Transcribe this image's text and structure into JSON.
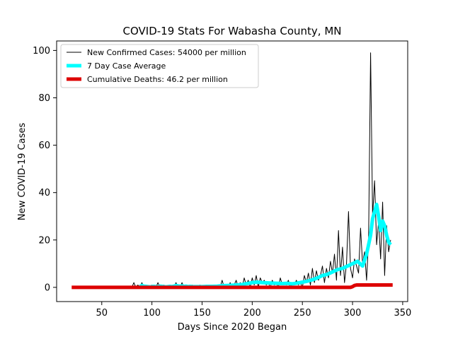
{
  "chart_data": {
    "type": "line",
    "title": "COVID-19 Stats For Wabasha County, MN",
    "xlabel": "Days Since 2020 Began",
    "ylabel": "New COVID-19 Cases",
    "xlim": [
      5,
      355
    ],
    "ylim": [
      -6,
      104
    ],
    "xticks": [
      50,
      100,
      150,
      200,
      250,
      300,
      350
    ],
    "yticks": [
      0,
      20,
      40,
      60,
      80,
      100
    ],
    "grid": false,
    "legend_position": "top-left",
    "series": [
      {
        "name": "New Confirmed Cases: 54000 per million",
        "color": "#000000",
        "style": "thin-line",
        "x": [
          80,
          82,
          84,
          86,
          88,
          90,
          92,
          94,
          96,
          98,
          100,
          102,
          104,
          106,
          108,
          110,
          112,
          114,
          116,
          118,
          120,
          122,
          124,
          126,
          128,
          130,
          132,
          134,
          136,
          138,
          140,
          142,
          144,
          146,
          148,
          150,
          152,
          154,
          156,
          158,
          160,
          162,
          164,
          166,
          168,
          170,
          172,
          174,
          176,
          178,
          180,
          182,
          184,
          186,
          188,
          190,
          192,
          194,
          196,
          198,
          200,
          202,
          204,
          206,
          208,
          210,
          212,
          214,
          216,
          218,
          220,
          222,
          224,
          226,
          228,
          230,
          232,
          234,
          236,
          238,
          240,
          242,
          244,
          246,
          248,
          250,
          252,
          254,
          256,
          258,
          260,
          262,
          264,
          266,
          268,
          270,
          272,
          274,
          276,
          278,
          280,
          282,
          284,
          286,
          288,
          290,
          292,
          294,
          296,
          298,
          300,
          302,
          304,
          306,
          308,
          310,
          312,
          314,
          316,
          318,
          320,
          322,
          324,
          326,
          328,
          330,
          332,
          334,
          336,
          338
        ],
        "y": [
          0,
          2,
          0,
          1,
          0,
          2,
          0,
          1,
          0,
          0,
          1,
          0,
          0,
          2,
          0,
          0,
          1,
          0,
          0,
          1,
          0,
          0,
          2,
          0,
          0,
          2,
          0,
          1,
          0,
          0,
          1,
          0,
          0,
          0,
          1,
          0,
          0,
          1,
          0,
          0,
          1,
          0,
          0,
          1,
          0,
          3,
          0,
          1,
          0,
          2,
          0,
          1,
          3,
          0,
          2,
          0,
          4,
          1,
          3,
          0,
          4,
          1,
          5,
          0,
          4,
          2,
          3,
          1,
          2,
          0,
          3,
          1,
          2,
          0,
          4,
          1,
          2,
          1,
          3,
          0,
          2,
          1,
          3,
          1,
          2,
          0,
          5,
          2,
          6,
          1,
          8,
          2,
          7,
          3,
          5,
          9,
          2,
          8,
          4,
          11,
          6,
          14,
          3,
          24,
          5,
          17,
          2,
          10,
          32,
          8,
          4,
          12,
          9,
          6,
          25,
          10,
          15,
          3,
          20,
          99,
          30,
          45,
          18,
          28,
          12,
          36,
          5,
          26,
          15,
          20
        ],
        "line_width": 1
      },
      {
        "name": "7 Day Case Average",
        "color": "#00ffff",
        "style": "thick-line",
        "x": [
          88,
          90,
          92,
          94,
          96,
          98,
          100,
          102,
          104,
          106,
          108,
          110,
          112,
          114,
          116,
          118,
          120,
          122,
          124,
          126,
          128,
          130,
          132,
          134,
          136,
          138,
          140,
          145,
          150,
          155,
          160,
          165,
          170,
          175,
          180,
          185,
          190,
          195,
          200,
          205,
          210,
          215,
          220,
          225,
          230,
          235,
          240,
          245,
          250,
          255,
          260,
          265,
          270,
          275,
          280,
          285,
          290,
          295,
          300,
          305,
          310,
          314,
          318,
          320,
          322,
          324,
          326,
          328,
          330,
          332,
          334,
          336,
          338
        ],
        "y": [
          0.3,
          0.8,
          0.5,
          0.4,
          0.3,
          0.2,
          0.3,
          0.4,
          0.3,
          0.2,
          0.5,
          0.4,
          0.3,
          0.2,
          0.3,
          0.4,
          0.3,
          0.5,
          0.8,
          0.6,
          0.5,
          0.6,
          0.4,
          0.5,
          0.3,
          0.4,
          0.3,
          0.3,
          0.3,
          0.4,
          0.4,
          0.5,
          0.7,
          0.8,
          0.9,
          1.0,
          1.2,
          1.6,
          2.0,
          2.2,
          2.0,
          1.9,
          1.8,
          1.7,
          1.6,
          1.7,
          1.5,
          1.8,
          2.2,
          2.6,
          3.2,
          4.0,
          5.0,
          5.5,
          6.5,
          7.5,
          8.0,
          9.0,
          10.0,
          11.0,
          9.0,
          14.0,
          22.0,
          29.0,
          32.0,
          35.0,
          30.0,
          24.0,
          28.0,
          26.0,
          22.0,
          19.0,
          18.0
        ],
        "line_width": 5
      },
      {
        "name": "Cumulative Deaths: 46.2 per million",
        "color": "#dd0000",
        "style": "thick-line",
        "x": [
          20,
          60,
          100,
          150,
          200,
          250,
          298,
          300,
          302,
          304,
          320,
          340
        ],
        "y": [
          0,
          0,
          0,
          0,
          0,
          0,
          0,
          0.3,
          0.8,
          1.0,
          1.0,
          1.0
        ],
        "line_width": 5
      }
    ]
  }
}
